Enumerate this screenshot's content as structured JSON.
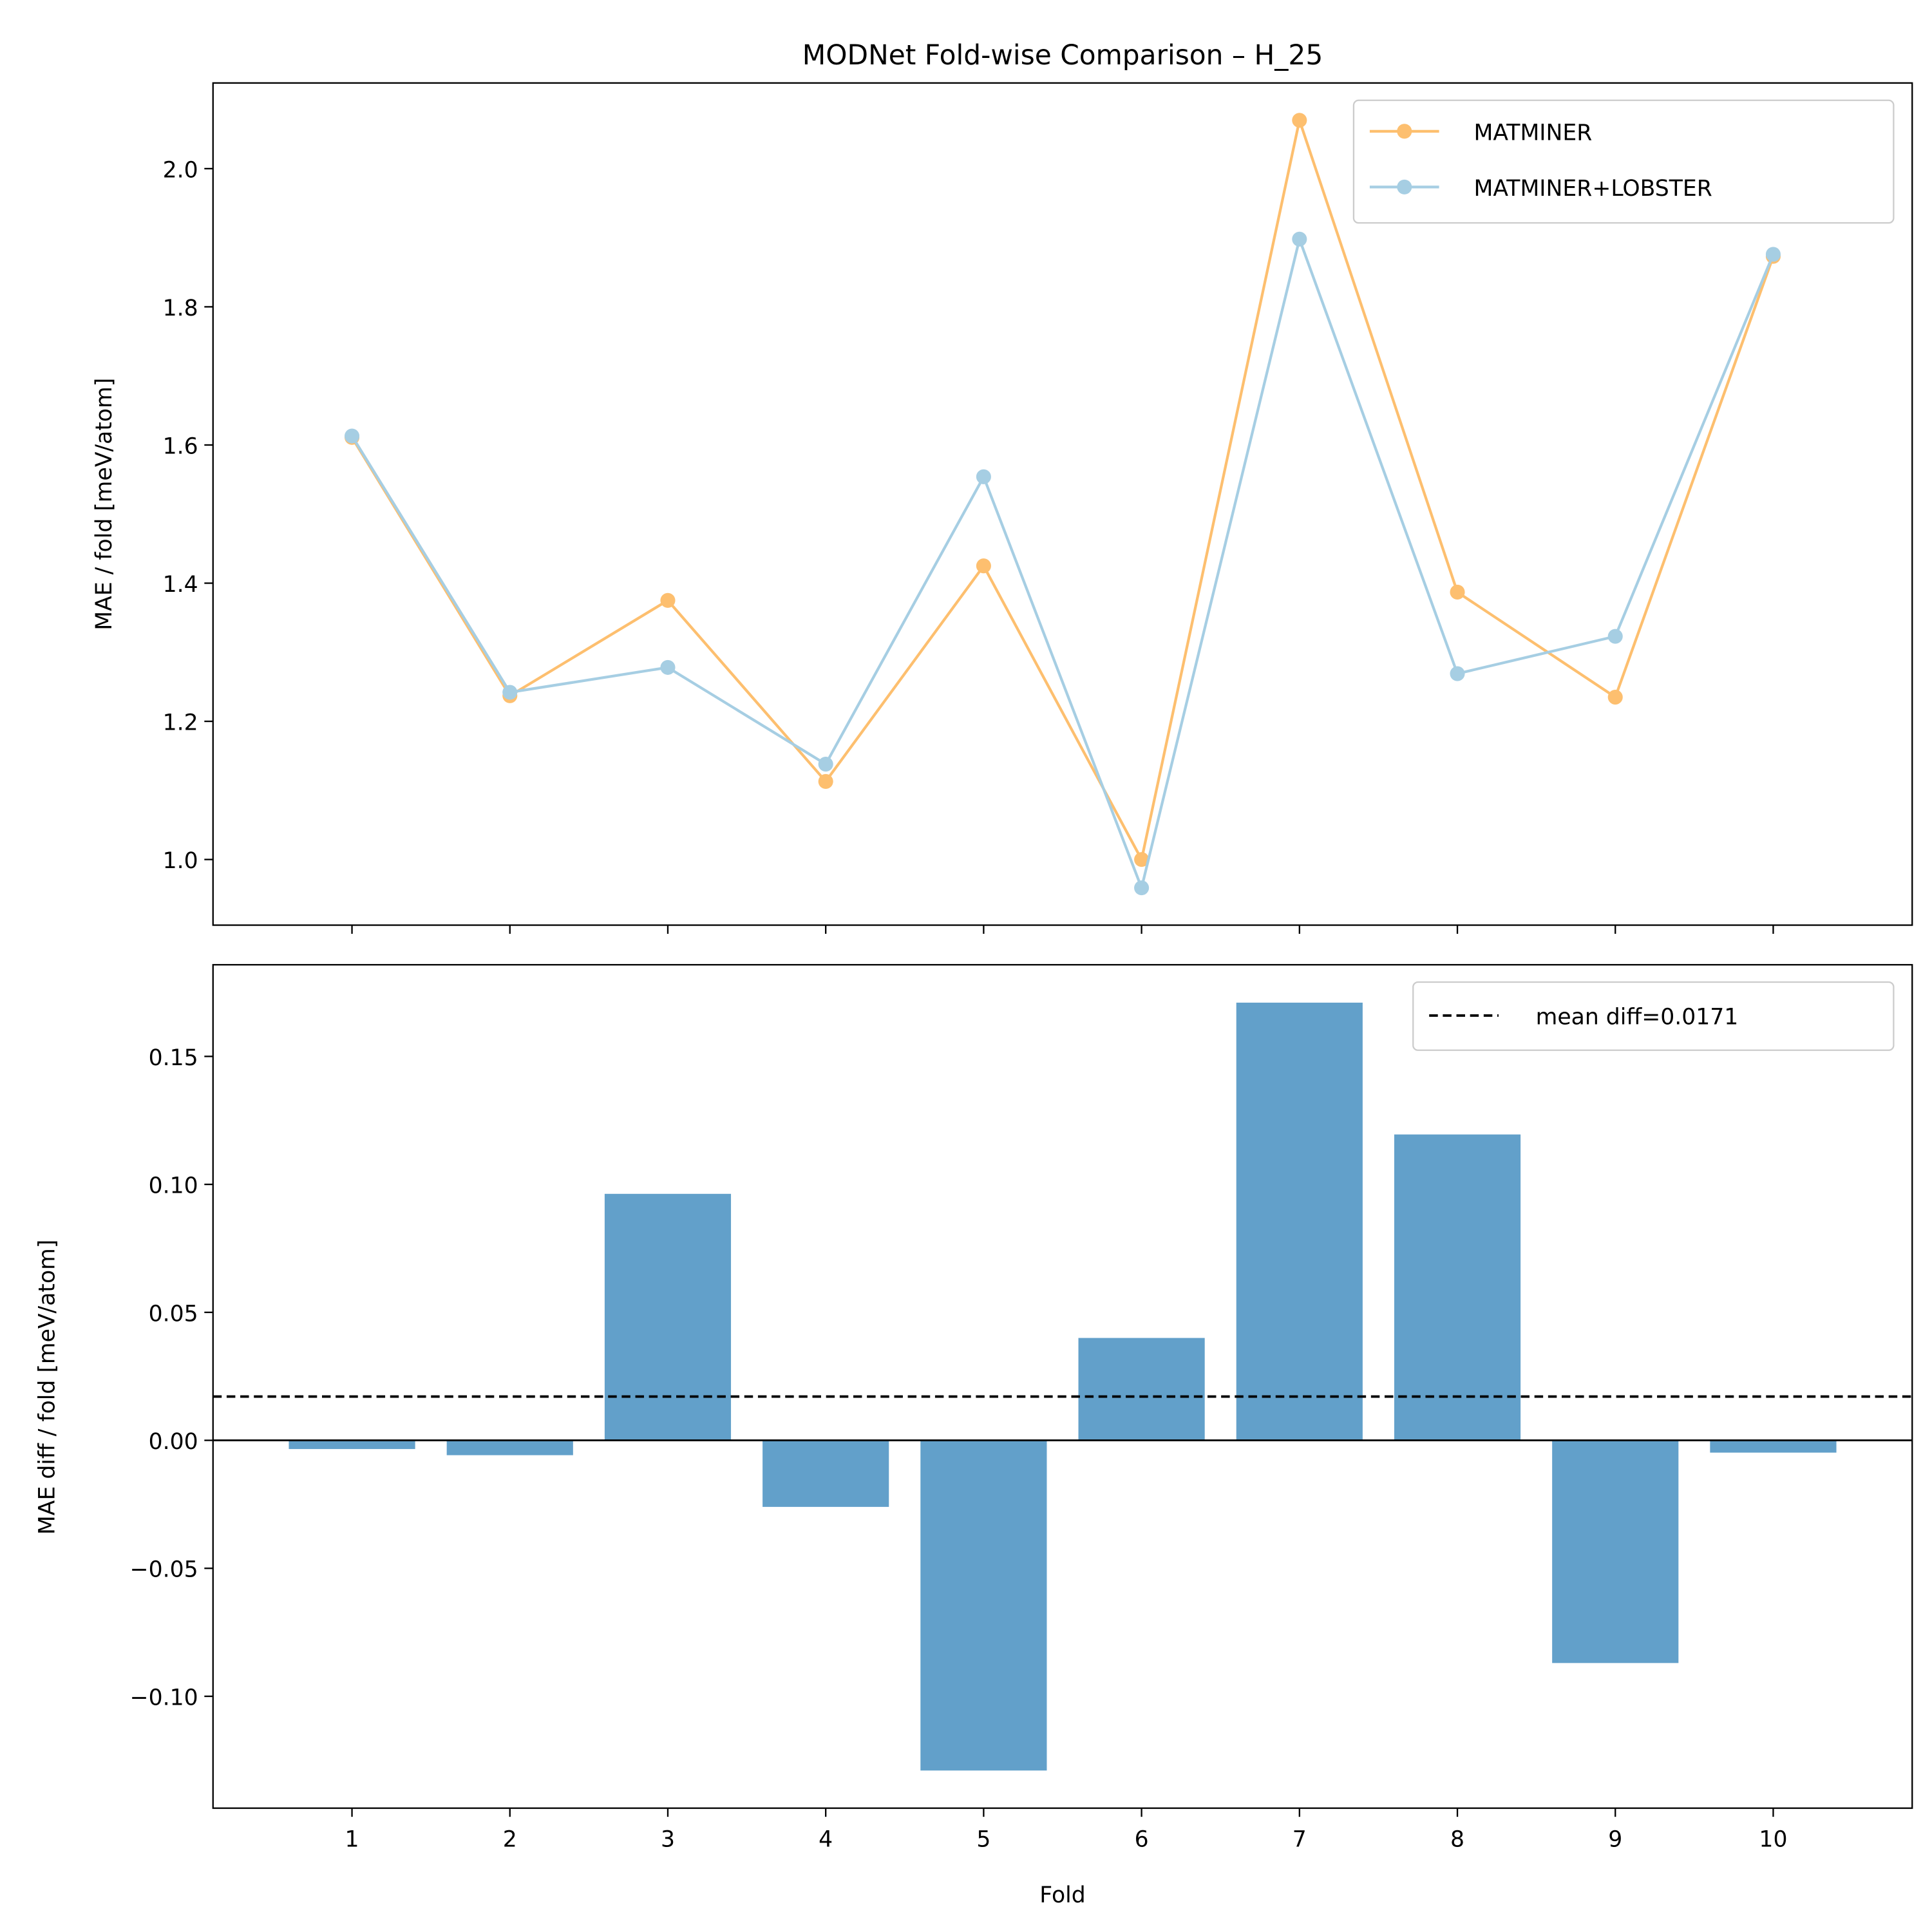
{
  "chart_data": [
    {
      "type": "line",
      "title": "MODNet Fold-wise Comparison – H_25",
      "xlabel": "",
      "ylabel": "MAE / fold [meV/atom]",
      "x": [
        1,
        2,
        3,
        4,
        5,
        6,
        7,
        8,
        9,
        10
      ],
      "xlim": [
        0.12,
        10.88
      ],
      "ylim": [
        0.905,
        2.124
      ],
      "yticks": [
        1.0,
        1.2,
        1.4,
        1.6,
        1.8,
        2.0
      ],
      "ytick_labels": [
        "1.0",
        "1.2",
        "1.4",
        "1.6",
        "1.8",
        "2.0"
      ],
      "grid": false,
      "legend": "top-right",
      "series": [
        {
          "name": "MATMINER",
          "color": "#fdbf6f",
          "values": [
            1.611,
            1.237,
            1.375,
            1.113,
            1.425,
            1.0,
            2.07,
            1.387,
            1.235,
            1.873
          ]
        },
        {
          "name": "MATMINER+LOBSTER",
          "color": "#a6cee3",
          "values": [
            1.613,
            1.242,
            1.278,
            1.138,
            1.554,
            0.959,
            1.898,
            1.269,
            1.323,
            1.876
          ]
        }
      ]
    },
    {
      "type": "bar",
      "xlabel": "Fold",
      "ylabel": "MAE diff / fold [meV/atom]",
      "categories": [
        "1",
        "2",
        "3",
        "4",
        "5",
        "6",
        "7",
        "8",
        "9",
        "10"
      ],
      "values": [
        -0.0034,
        -0.0058,
        0.0963,
        -0.026,
        -0.129,
        0.04,
        0.171,
        0.1195,
        -0.087,
        -0.0048
      ],
      "bar_color": "#62a0ca",
      "xlim": [
        0.12,
        10.88
      ],
      "ylim": [
        -0.1437,
        0.1858
      ],
      "yticks": [
        -0.1,
        -0.05,
        0.0,
        0.05,
        0.1,
        0.15
      ],
      "ytick_labels": [
        "−0.10",
        "−0.05",
        "0.00",
        "0.05",
        "0.10",
        "0.15"
      ],
      "grid": false,
      "legend": "top-right",
      "mean_line": {
        "value": 0.0171,
        "label": "mean diff=0.0171",
        "style": "dashed",
        "color": "#000000"
      },
      "zero_line": true
    }
  ]
}
